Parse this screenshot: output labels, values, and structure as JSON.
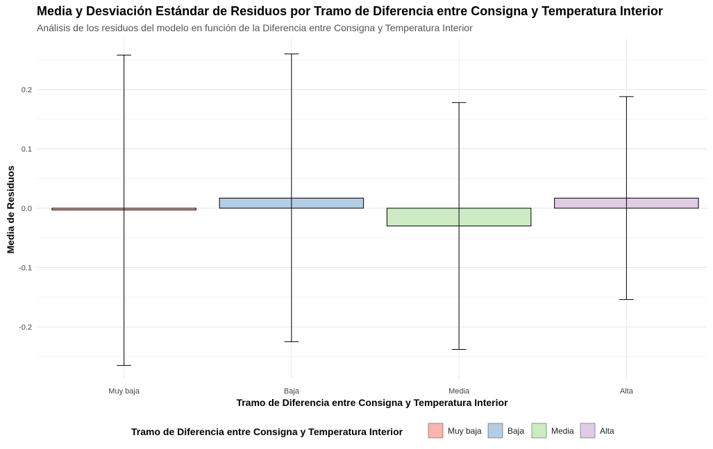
{
  "chart_data": {
    "type": "bar",
    "title": "Media y Desviación Estándar de Residuos por Tramo de Diferencia entre Consigna y Temperatura Interior",
    "subtitle": "Análisis de los residuos del modelo en función de la Diferencia entre Consigna y Temperatura Interior",
    "xlabel": "Tramo de Diferencia entre Consigna y Temperatura Interior",
    "ylabel": "Media de Residuos",
    "categories": [
      "Muy baja",
      "Baja",
      "Media",
      "Alta"
    ],
    "values": [
      -0.003,
      0.017,
      -0.03,
      0.017
    ],
    "error_low": [
      -0.265,
      -0.225,
      -0.238,
      -0.154
    ],
    "error_high": [
      0.258,
      0.26,
      0.178,
      0.188
    ],
    "colors": [
      "#FBB4AE",
      "#B3CDE3",
      "#CCEBC5",
      "#DECBE4"
    ],
    "ylim": [
      -0.25,
      0.25
    ],
    "yticks": [
      -0.2,
      -0.1,
      0.0,
      0.1,
      0.2
    ],
    "ytick_labels": [
      "-0.2",
      "-0.1",
      "0.0",
      "0.1",
      "0.2"
    ],
    "grid": true,
    "legend": {
      "title": "Tramo de Diferencia entre Consigna y Temperatura Interior",
      "position": "bottom",
      "items": [
        "Muy baja",
        "Baja",
        "Media",
        "Alta"
      ]
    }
  }
}
